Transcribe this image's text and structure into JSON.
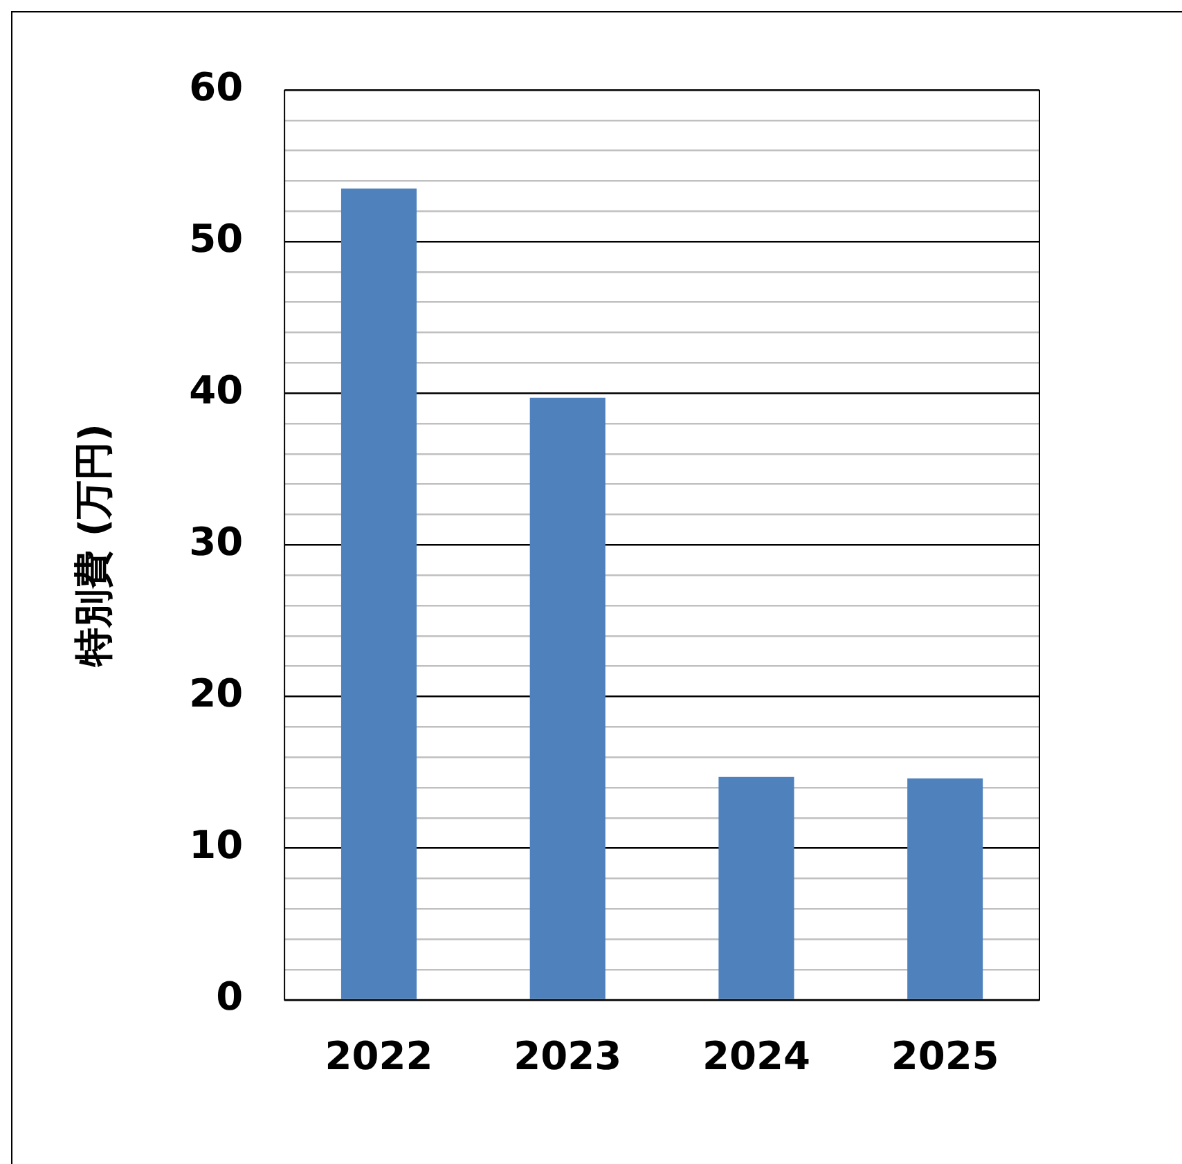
{
  "chart_data": {
    "type": "bar",
    "ylabel": "特別費 (万円)",
    "categories": [
      "2022",
      "2023",
      "2024",
      "2025"
    ],
    "values": [
      53.5,
      39.7,
      14.7,
      14.6
    ],
    "color": "#4f81bd",
    "ylim": [
      0,
      60
    ],
    "yticks": [
      0,
      {
        "value": 2,
        "label": null
      },
      {
        "value": 4,
        "label": null
      },
      {
        "value": 6,
        "label": null
      },
      {
        "value": 8,
        "label": null
      },
      10,
      {
        "value": 12,
        "label": null
      },
      {
        "value": 14,
        "label": null
      },
      {
        "value": 16,
        "label": null
      },
      {
        "value": 18,
        "label": null
      },
      20,
      {
        "value": 22,
        "label": null
      },
      {
        "value": 24,
        "label": null
      },
      {
        "value": 26,
        "label": null
      },
      {
        "value": 28,
        "label": null
      },
      30,
      {
        "value": 32,
        "label": null
      },
      {
        "value": 34,
        "label": null
      },
      {
        "value": 36,
        "label": null
      },
      {
        "value": 38,
        "label": null
      },
      40,
      {
        "value": 42,
        "label": null
      },
      {
        "value": 44,
        "label": null
      },
      {
        "value": 46,
        "label": null
      },
      {
        "value": 48,
        "label": null
      },
      50,
      {
        "value": 52,
        "label": null
      },
      {
        "value": 54,
        "label": null
      },
      {
        "value": 56,
        "label": null
      },
      {
        "value": 58,
        "label": null
      },
      60
    ],
    "grid": "y",
    "legend": false
  }
}
